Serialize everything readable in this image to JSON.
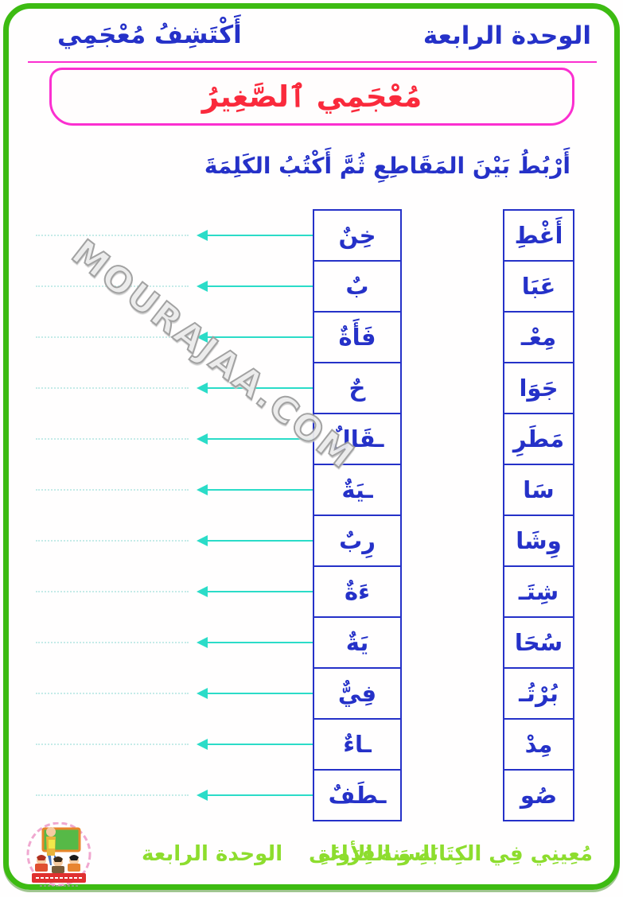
{
  "header": {
    "unit_title": "الوحدة الرابعة",
    "lesson_title": "أَكْتَشِفُ مُعْجَمِي"
  },
  "title_box": {
    "title": "مُعْجَمِي ٱلصَّغِيرُ"
  },
  "instruction": "أَرْبُطُ بَيْنَ المَقَاطِعِ ثُمَّ أَكْتُبُ الكَلِمَةَ",
  "watermark": "MOURAJAA.COM",
  "match": {
    "rows": [
      {
        "start": "أَغْطِ",
        "end": "خِنٌ"
      },
      {
        "start": "عَبَا",
        "end": "بٌ"
      },
      {
        "start": "مِعْـ",
        "end": "فَأَةٌ"
      },
      {
        "start": "جَوَا",
        "end": "حٌ"
      },
      {
        "start": "مَطَرِ",
        "end": "ـقَالٌ"
      },
      {
        "start": "سَا",
        "end": "ـيَةٌ"
      },
      {
        "start": "وِشَا",
        "end": "رِبٌ"
      },
      {
        "start": "شِتَـ",
        "end": "ءَةٌ"
      },
      {
        "start": "سُحَا",
        "end": "يَةٌ"
      },
      {
        "start": "بُرْتُـ",
        "end": "فِيٌّ"
      },
      {
        "start": "مِدْ",
        "end": "ـاءٌ"
      },
      {
        "start": "صُو",
        "end": "ـطَفٌ"
      }
    ]
  },
  "footer": {
    "book_title": "مُعِينِي فِي الكِتَابَةِ وَ القِرَاءَةِ",
    "grade": "السنة الأولى",
    "unit": "الوحدة الرابعة"
  },
  "colors": {
    "frame_green": "#3dbb12",
    "text_blue": "#2531c8",
    "magenta": "#fb2fd0",
    "title_red": "#fa2a3c",
    "arrow_cyan": "#2bdcc8",
    "dotted_cyan": "#c5ebe8",
    "footer_green": "#8ddd2e"
  }
}
